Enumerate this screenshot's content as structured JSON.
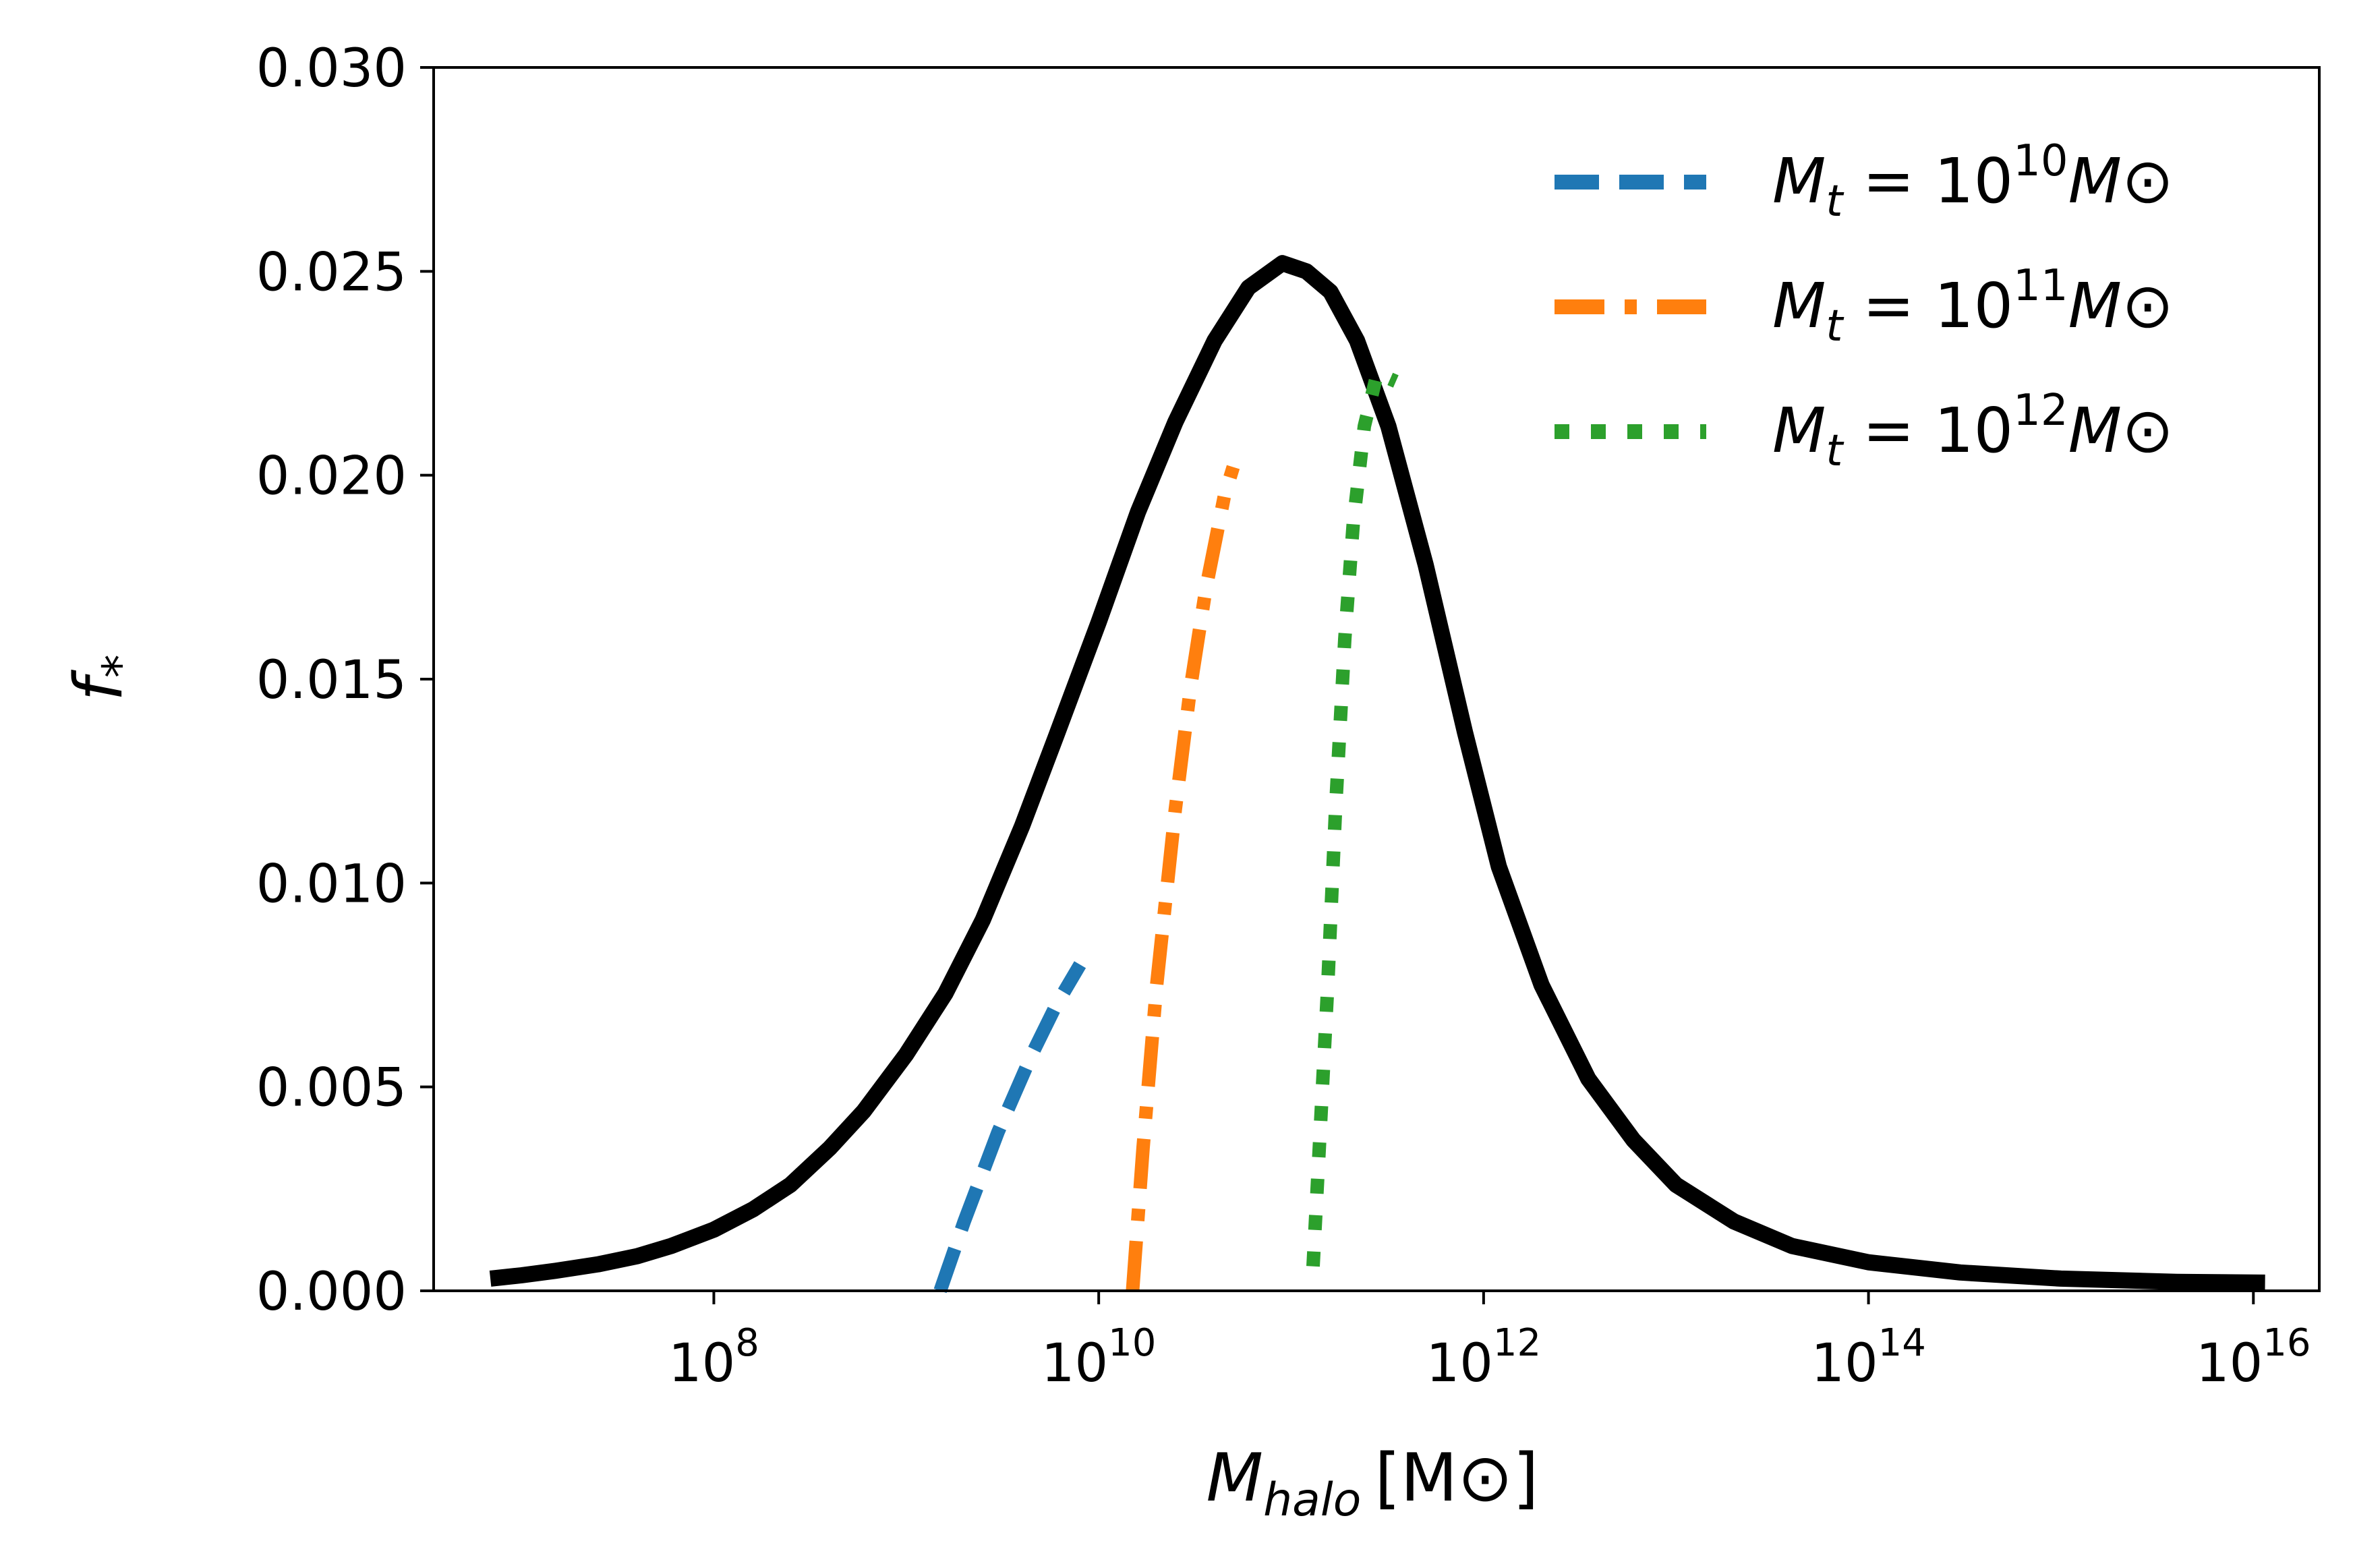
{
  "chart_data": {
    "type": "line",
    "x_scale": "log",
    "xlim": [
      3500000.0,
      2.2e+16
    ],
    "ylim": [
      0,
      0.03
    ],
    "x_ticks": [
      {
        "value": 100000000.0,
        "base": "10",
        "exp": "8"
      },
      {
        "value": 10000000000.0,
        "base": "10",
        "exp": "10"
      },
      {
        "value": 1000000000000.0,
        "base": "10",
        "exp": "12"
      },
      {
        "value": 100000000000000.0,
        "base": "10",
        "exp": "14"
      },
      {
        "value": 1e+16,
        "base": "10",
        "exp": "16"
      }
    ],
    "y_ticks": [
      {
        "value": 0,
        "label": "0.000"
      },
      {
        "value": 0.005,
        "label": "0.005"
      },
      {
        "value": 0.01,
        "label": "0.010"
      },
      {
        "value": 0.015,
        "label": "0.015"
      },
      {
        "value": 0.02,
        "label": "0.020"
      },
      {
        "value": 0.025,
        "label": "0.025"
      },
      {
        "value": 0.03,
        "label": "0.030"
      }
    ],
    "xlabel": {
      "main": "M",
      "sub": "halo",
      "unit": "[M⊙]"
    },
    "ylabel": {
      "main": "f",
      "sub": "*"
    },
    "legend_position": "top-right",
    "grid": false,
    "series": [
      {
        "name": "",
        "color": "#000000",
        "style": "solid",
        "in_legend": false,
        "points": [
          [
            6900000.0,
            0.0003
          ],
          [
            10000000.0,
            0.00038
          ],
          [
            15000000.0,
            0.00049
          ],
          [
            25000000.0,
            0.00065
          ],
          [
            40000000.0,
            0.00085
          ],
          [
            60000000.0,
            0.0011
          ],
          [
            100000000.0,
            0.0015
          ],
          [
            160000000.0,
            0.002
          ],
          [
            250000000.0,
            0.0026
          ],
          [
            400000000.0,
            0.0035
          ],
          [
            600000000.0,
            0.0044
          ],
          [
            1000000000.0,
            0.0058
          ],
          [
            1600000000.0,
            0.0073
          ],
          [
            2500000000.0,
            0.0091
          ],
          [
            4000000000.0,
            0.0114
          ],
          [
            6000000000.0,
            0.0136
          ],
          [
            10000000000.0,
            0.0164
          ],
          [
            16000000000.0,
            0.0191
          ],
          [
            25000000000.0,
            0.0213
          ],
          [
            40000000000.0,
            0.0233
          ],
          [
            60000000000.0,
            0.0246
          ],
          [
            90000000000.0,
            0.0252
          ],
          [
            120000000000.0,
            0.025
          ],
          [
            160000000000.0,
            0.0245
          ],
          [
            220000000000.0,
            0.0233
          ],
          [
            320000000000.0,
            0.0212
          ],
          [
            500000000000.0,
            0.0178
          ],
          [
            800000000000.0,
            0.0137
          ],
          [
            1200000000000.0,
            0.0104
          ],
          [
            2000000000000.0,
            0.0075
          ],
          [
            3500000000000.0,
            0.0052
          ],
          [
            6000000000000.0,
            0.0037
          ],
          [
            10000000000000.0,
            0.0026
          ],
          [
            20000000000000.0,
            0.0017
          ],
          [
            40000000000000.0,
            0.0011
          ],
          [
            100000000000000.0,
            0.0007
          ],
          [
            300000000000000.0,
            0.00045
          ],
          [
            1000000000000000.0,
            0.0003
          ],
          [
            4000000000000000.0,
            0.00022
          ],
          [
            1.15e+16,
            0.0002
          ]
        ]
      },
      {
        "name": "M_t = 10^10 M⊙",
        "legend": {
          "pre": "M",
          "sub": "t",
          "mid": " = 10",
          "sup": "10",
          "post": "M⊙"
        },
        "color": "#1f77b4",
        "style": "dashed",
        "in_legend": true,
        "points": [
          [
            1500000000.0,
            0
          ],
          [
            2000000000.0,
            0.0017
          ],
          [
            3000000000.0,
            0.0039
          ],
          [
            4500000000.0,
            0.0058
          ],
          [
            6000000000.0,
            0.007
          ],
          [
            8000000000.0,
            0.008
          ]
        ]
      },
      {
        "name": "M_t = 10^11 M⊙",
        "legend": {
          "pre": "M",
          "sub": "t",
          "mid": " = 10",
          "sup": "11",
          "post": "M⊙"
        },
        "color": "#ff7f0e",
        "style": "dashdot",
        "in_legend": true,
        "points": [
          [
            15000000000.0,
            0
          ],
          [
            17000000000.0,
            0.0035
          ],
          [
            20000000000.0,
            0.0075
          ],
          [
            25000000000.0,
            0.0118
          ],
          [
            30000000000.0,
            0.0148
          ],
          [
            36000000000.0,
            0.0172
          ],
          [
            45000000000.0,
            0.0195
          ],
          [
            50000000000.0,
            0.0202
          ]
        ]
      },
      {
        "name": "M_t = 10^12 M⊙",
        "legend": {
          "pre": "M",
          "sub": "t",
          "mid": " = 10",
          "sup": "12",
          "post": "M⊙"
        },
        "color": "#2ca02c",
        "style": "dotted",
        "in_legend": true,
        "points": [
          [
            130000000000.0,
            0.0006
          ],
          [
            140000000000.0,
            0.0035
          ],
          [
            155000000000.0,
            0.0075
          ],
          [
            170000000000.0,
            0.0118
          ],
          [
            190000000000.0,
            0.016
          ],
          [
            210000000000.0,
            0.0188
          ],
          [
            240000000000.0,
            0.0212
          ],
          [
            280000000000.0,
            0.0225
          ],
          [
            350000000000.0,
            0.0223
          ]
        ]
      }
    ]
  }
}
